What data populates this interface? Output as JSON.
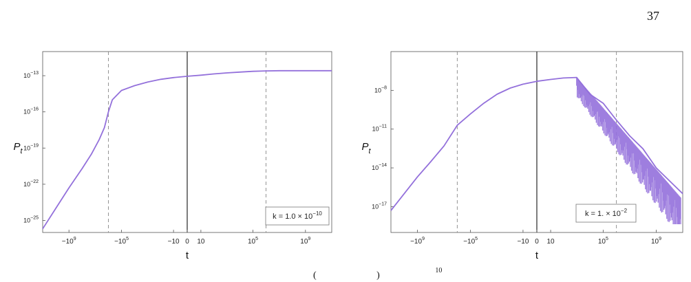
{
  "page": {
    "number": "37",
    "footer_fragment": "(",
    "footer_fragment_2": ")",
    "footer_exponent": "10"
  },
  "chart_data": [
    {
      "type": "line",
      "xlabel": "t",
      "ylabel": "P",
      "ylabel_sub": "t",
      "x_scale": "symmetric-log",
      "y_scale": "log",
      "xlim": [
        -100000000000.0,
        100000000000.0
      ],
      "ylim": [
        1e-26,
        1e-11
      ],
      "x_ticks": [
        "−10^9",
        "−10^5",
        "−10",
        "0",
        "10",
        "10^5",
        "10^9"
      ],
      "y_ticks": [
        "10^-13",
        "10^-16",
        "10^-19",
        "10^-22",
        "10^-25"
      ],
      "reference_lines": [
        -1000000.0,
        0,
        1000000.0
      ],
      "legend": "k = 1.0 × 10^-10",
      "legend_parts": {
        "base": "k = 1.0 × 10",
        "exp": "−10"
      },
      "color": "#9370db",
      "series": [
        {
          "x": [
            -100000000000.0,
            -10000000000.0,
            -1000000000.0,
            -100000000.0,
            -20000000.0,
            -5000000.0,
            -2000000.0,
            -1000000.0,
            -500000.0,
            -100000.0,
            -10000.0,
            -1000.0,
            -100,
            -10,
            0,
            10,
            100,
            1000.0,
            10000.0,
            100000.0,
            1000000.0,
            10000000.0,
            100000000.0,
            1000000000.0,
            10000000000.0,
            100000000000.0
          ],
          "y": [
            2e-26,
            1e-24,
            5e-23,
            2e-21,
            3e-20,
            5e-19,
            5e-18,
            1e-16,
            1e-15,
            6e-15,
            1.5e-14,
            3e-14,
            5e-14,
            7e-14,
            9e-14,
            1.1e-13,
            1.4e-13,
            1.7e-13,
            2e-13,
            2.3e-13,
            2.5e-13,
            2.6e-13,
            2.6e-13,
            2.6e-13,
            2.6e-13,
            2.6e-13
          ]
        }
      ]
    },
    {
      "type": "line",
      "xlabel": "t",
      "ylabel": "P",
      "ylabel_sub": "t",
      "x_scale": "symmetric-log",
      "y_scale": "log",
      "xlim": [
        -100000000000.0,
        100000000000.0
      ],
      "ylim": [
        1e-19,
        1e-05
      ],
      "x_ticks": [
        "−10^9",
        "−10^5",
        "−10",
        "0",
        "10",
        "10^5",
        "10^9"
      ],
      "y_ticks": [
        "10^-8",
        "10^-11",
        "10^-14",
        "10^-17"
      ],
      "reference_lines": [
        -1000000.0,
        0,
        1000000.0
      ],
      "legend": "k = 1. × 10^-2",
      "legend_parts": {
        "base": "k = 1. × 10",
        "exp": "−2"
      },
      "color": "#9370db",
      "series": [
        {
          "x": [
            -100000000000.0,
            -10000000000.0,
            -1000000000.0,
            -100000000.0,
            -10000000.0,
            -1000000.0,
            -100000.0,
            -10000.0,
            -1000.0,
            -100,
            -10,
            0,
            10,
            100,
            1000.0,
            10000.0,
            100000.0,
            1000000.0,
            10000000.0,
            100000000.0,
            1000000000.0,
            10000000000.0,
            100000000000.0
          ],
          "y": [
            5e-18,
            1e-16,
            2e-15,
            3e-14,
            5e-13,
            2e-11,
            1.5e-10,
            1e-09,
            5e-09,
            1.5e-08,
            3e-08,
            5e-08,
            7e-08,
            9e-08,
            1e-07,
            5e-09,
            1e-09,
            5e-11,
            3e-12,
            3e-13,
            1e-14,
            1e-15,
            1e-16
          ]
        }
      ]
    }
  ]
}
